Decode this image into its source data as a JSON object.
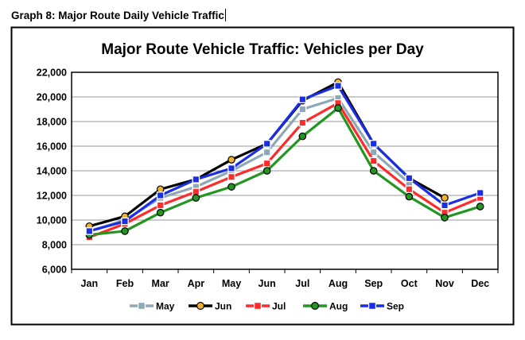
{
  "document": {
    "caption": "Graph 8:  Major Route Daily Vehicle Traffic"
  },
  "chart_data": {
    "type": "line",
    "title": "Major Route Vehicle Traffic:  Vehicles per Day",
    "xlabel": "",
    "ylabel": "",
    "ylim": [
      6000,
      22000
    ],
    "yticks": [
      6000,
      8000,
      10000,
      12000,
      14000,
      16000,
      18000,
      20000,
      22000
    ],
    "ytick_labels": [
      "6,000",
      "8,000",
      "10,000",
      "12,000",
      "14,000",
      "16,000",
      "18,000",
      "20,000",
      "22,000"
    ],
    "grid": true,
    "legend_position": "bottom",
    "categories": [
      "Jan",
      "Feb",
      "Mar",
      "Apr",
      "May",
      "Jun",
      "Jul",
      "Aug",
      "Sep",
      "Oct",
      "Nov",
      "Dec"
    ],
    "series": [
      {
        "name": "May",
        "color": "#8fa8b8",
        "marker": "square",
        "values": [
          9100,
          10000,
          11800,
          12700,
          14000,
          15500,
          19000,
          19900,
          15500,
          13000,
          null,
          null
        ]
      },
      {
        "name": "Jun",
        "color": "#000000",
        "marker": "circle",
        "markerFill": "#f0b030",
        "values": [
          9500,
          10300,
          12500,
          13300,
          14900,
          16200,
          19700,
          21200,
          16200,
          13400,
          11800,
          null
        ]
      },
      {
        "name": "Jul",
        "color": "#ff2a2a",
        "marker": "square",
        "values": [
          8600,
          9700,
          11200,
          12300,
          13500,
          14600,
          17900,
          19500,
          14800,
          12500,
          10600,
          11800
        ]
      },
      {
        "name": "Aug",
        "color": "#22961e",
        "marker": "circle",
        "values": [
          8800,
          9100,
          10600,
          11800,
          12700,
          14000,
          16800,
          19100,
          14000,
          11900,
          10200,
          11100
        ]
      },
      {
        "name": "Sep",
        "color": "#1a2ee6",
        "marker": "square",
        "values": [
          9100,
          9900,
          12000,
          13300,
          14200,
          16200,
          19800,
          20900,
          16200,
          13400,
          11200,
          12200
        ]
      }
    ]
  }
}
